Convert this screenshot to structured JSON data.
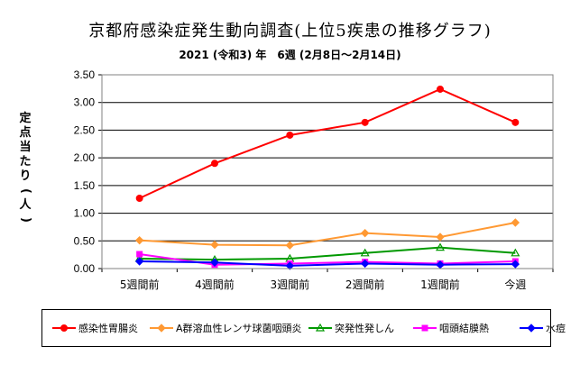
{
  "chart_data": {
    "type": "line",
    "title": "京都府感染症発生動向調査(上位5疾患の推移グラフ)",
    "subtitle": "2021 (令和3) 年　6週 (2月8日～2月14日)",
    "ylabel": "定点当たり(人)",
    "xlabel": "",
    "categories": [
      "5週間前",
      "4週間前",
      "3週間前",
      "2週間前",
      "1週間前",
      "今週"
    ],
    "ylim": [
      0,
      3.5
    ],
    "yticks": [
      "0.00",
      "0.50",
      "1.00",
      "1.50",
      "2.00",
      "2.50",
      "3.00",
      "3.50"
    ],
    "grid": true,
    "legend_position": "bottom",
    "series": [
      {
        "name": "感染性胃腸炎",
        "color": "#ff0000",
        "marker": "circle",
        "values": [
          1.27,
          1.9,
          2.41,
          2.64,
          3.24,
          2.64
        ]
      },
      {
        "name": "A群溶血性レンサ球菌咽頭炎",
        "color": "#ff9933",
        "marker": "diamond",
        "values": [
          0.51,
          0.43,
          0.42,
          0.64,
          0.57,
          0.83
        ]
      },
      {
        "name": "突発性発しん",
        "color": "#009900",
        "marker": "triangle",
        "values": [
          0.18,
          0.16,
          0.18,
          0.28,
          0.38,
          0.28
        ]
      },
      {
        "name": "咽頭結膜熱",
        "color": "#ff00ff",
        "marker": "square",
        "values": [
          0.26,
          0.07,
          0.09,
          0.12,
          0.09,
          0.13
        ]
      },
      {
        "name": "水痘",
        "color": "#0000ff",
        "marker": "diamond",
        "values": [
          0.13,
          0.11,
          0.05,
          0.09,
          0.07,
          0.08
        ]
      }
    ]
  }
}
